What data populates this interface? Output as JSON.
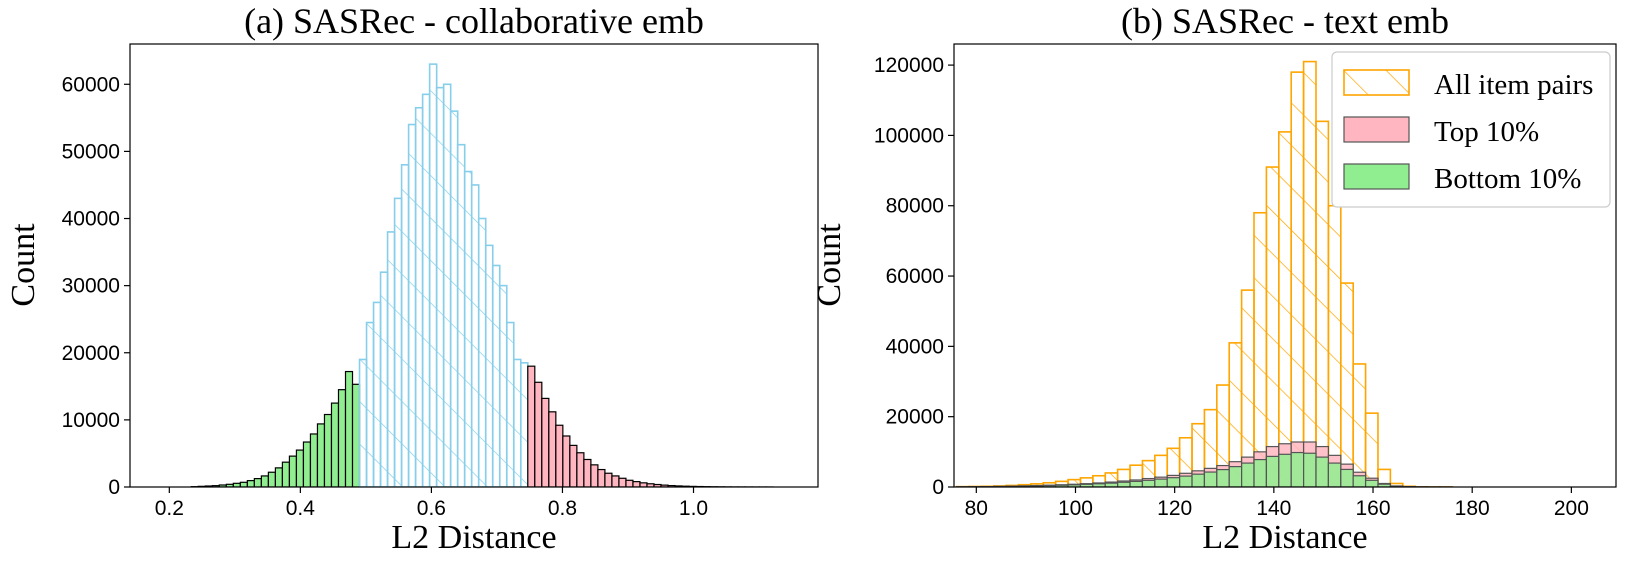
{
  "chart_data": [
    {
      "type": "bar",
      "title": "(a) SASRec - collaborative emb",
      "xlabel": "L2 Distance",
      "ylabel": "Count",
      "xlim": [
        0.14,
        1.19
      ],
      "ylim": [
        0,
        66000
      ],
      "xticks": [
        "0.2",
        "0.4",
        "0.6",
        "0.8",
        "1.0"
      ],
      "xtick_values": [
        0.2,
        0.4,
        0.6,
        0.8,
        1.0
      ],
      "yticks": [
        "0",
        "10000",
        "20000",
        "30000",
        "40000",
        "50000",
        "60000"
      ],
      "ytick_values": [
        0,
        10000,
        20000,
        30000,
        40000,
        50000,
        60000
      ],
      "bin_start": 0.18,
      "bin_width": 0.0107,
      "series": [
        {
          "name": "",
          "style": "fill",
          "color": "#90EE90",
          "edge": "#000000",
          "first_bin": 0,
          "values": [
            0,
            0,
            0,
            0,
            0,
            50,
            100,
            150,
            200,
            300,
            400,
            550,
            700,
            950,
            1250,
            1650,
            2200,
            2850,
            3700,
            4600,
            5500,
            6700,
            7900,
            9400,
            10800,
            12500,
            14500,
            17200,
            15300
          ]
        },
        {
          "name": "",
          "style": "hatch",
          "color": "#87CEEB",
          "first_bin": 29,
          "values": [
            19000,
            24500,
            27500,
            32000,
            38000,
            43000,
            48000,
            54000,
            56500,
            58500,
            63000,
            59500,
            60000,
            56000,
            51000,
            47000,
            45000,
            40000,
            36000,
            33000,
            30000,
            24500,
            19000,
            18500
          ]
        },
        {
          "name": "",
          "style": "fill",
          "color": "#FFB6C1",
          "edge": "#000000",
          "first_bin": 53,
          "values": [
            18000,
            15600,
            13200,
            11200,
            9200,
            7600,
            6200,
            5100,
            4100,
            3300,
            2600,
            2050,
            1650,
            1300,
            1000,
            800,
            620,
            480,
            370,
            280,
            210,
            160,
            120,
            90,
            70,
            50,
            35,
            25,
            15,
            10,
            8,
            5,
            3,
            2,
            1
          ]
        }
      ]
    },
    {
      "type": "bar",
      "title": "(b) SASRec - text emb",
      "xlabel": "L2 Distance",
      "ylabel": "Count",
      "xlim": [
        75.5,
        209
      ],
      "ylim": [
        0,
        126000
      ],
      "xticks": [
        "80",
        "100",
        "120",
        "140",
        "160",
        "180",
        "200"
      ],
      "xtick_values": [
        80,
        100,
        120,
        140,
        160,
        180,
        200
      ],
      "yticks": [
        "0",
        "20000",
        "40000",
        "60000",
        "80000",
        "100000",
        "120000"
      ],
      "ytick_values": [
        0,
        20000,
        40000,
        60000,
        80000,
        100000,
        120000
      ],
      "bin_start": 76,
      "bin_width": 2.5,
      "series": [
        {
          "name": "All item pairs",
          "style": "hatch",
          "color": "#FFA500",
          "first_bin": 0,
          "values": [
            100,
            150,
            200,
            300,
            450,
            650,
            900,
            1200,
            1600,
            2100,
            2600,
            3200,
            4000,
            5000,
            6200,
            7500,
            9000,
            11000,
            14000,
            18000,
            22000,
            29000,
            41000,
            56000,
            78000,
            91000,
            101000,
            118000,
            121000,
            104000,
            80000,
            58000,
            35000,
            21000,
            5000,
            1000,
            200,
            50,
            20,
            10
          ]
        },
        {
          "name": "Top 10%",
          "style": "fill",
          "color": "#FFB6C1",
          "edge": "#555555",
          "first_bin": 0,
          "values": [
            50,
            80,
            120,
            180,
            250,
            330,
            420,
            520,
            640,
            780,
            950,
            1150,
            1400,
            1700,
            2000,
            2400,
            2800,
            3300,
            3900,
            4600,
            5300,
            6100,
            7200,
            8500,
            10000,
            11500,
            12300,
            12800,
            12800,
            11500,
            9000,
            6500,
            4200,
            2500,
            1000,
            300,
            100,
            30,
            10,
            5
          ]
        },
        {
          "name": "Bottom 10%",
          "style": "fill",
          "color": "#90EE90",
          "edge": "#555555",
          "first_bin": 0,
          "values": [
            40,
            60,
            90,
            130,
            180,
            240,
            310,
            400,
            500,
            620,
            760,
            920,
            1100,
            1350,
            1600,
            1900,
            2250,
            2650,
            3100,
            3650,
            4250,
            4950,
            5800,
            6800,
            7800,
            8700,
            9300,
            9800,
            9600,
            8500,
            6800,
            5000,
            3200,
            1900,
            800,
            250,
            80,
            25,
            8,
            3
          ]
        }
      ],
      "legend": {
        "position": "top-right",
        "entries": [
          "All item pairs",
          "Top 10%",
          "Bottom 10%"
        ]
      }
    }
  ]
}
